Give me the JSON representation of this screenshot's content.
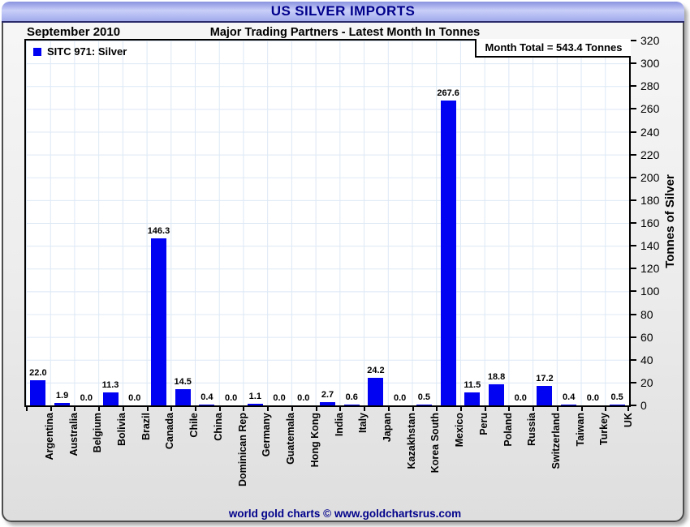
{
  "window": {
    "title": "US SILVER IMPORTS"
  },
  "header": {
    "date_label": "September 2010",
    "subtitle": "Major Trading Partners - Latest Month In Tonnes"
  },
  "legend": {
    "label": "SITC 971: Silver"
  },
  "month_total_label": "Month Total = 543.4 Tonnes",
  "footer": {
    "credit": "world gold charts © www.goldchartsrus.com"
  },
  "colors": {
    "bar": "#0202f2",
    "title_text": "#00008b",
    "grid": "#dce8f5",
    "plot_border": "#000000"
  },
  "chart_data": {
    "type": "bar",
    "title": "US SILVER IMPORTS",
    "subtitle": "Major Trading Partners - Latest Month In Tonnes",
    "period": "September 2010",
    "series_name": "SITC 971: Silver",
    "month_total": 543.4,
    "unit": "Tonnes",
    "categories": [
      "Argentina",
      "Australia",
      "Belgium",
      "Bolivia",
      "Brazil",
      "Canada",
      "Chile",
      "China",
      "Dominican Rep",
      "Germany",
      "Guatemala",
      "Hong Kong",
      "India",
      "Italy",
      "Japan",
      "Kazakhstan",
      "Korea South",
      "Mexico",
      "Peru",
      "Poland",
      "Russia",
      "Switzerland",
      "Taiwan",
      "Turkey",
      "UK"
    ],
    "values": [
      22.0,
      1.9,
      0.0,
      11.3,
      0.0,
      146.3,
      14.5,
      0.4,
      0.0,
      1.1,
      0.0,
      0.0,
      2.7,
      0.6,
      24.2,
      0.0,
      0.5,
      267.6,
      11.5,
      18.8,
      0.0,
      17.2,
      0.4,
      0.0,
      0.5
    ],
    "ylabel": "Tonnes of Silver",
    "xlabel": "",
    "ylim": [
      0,
      320
    ],
    "y_ticks": [
      0,
      20,
      40,
      60,
      80,
      100,
      120,
      140,
      160,
      180,
      200,
      220,
      240,
      260,
      280,
      300,
      320
    ],
    "grid": true,
    "yaxis_side": "right",
    "legend_position": "top-left",
    "value_labels_shown": true
  }
}
